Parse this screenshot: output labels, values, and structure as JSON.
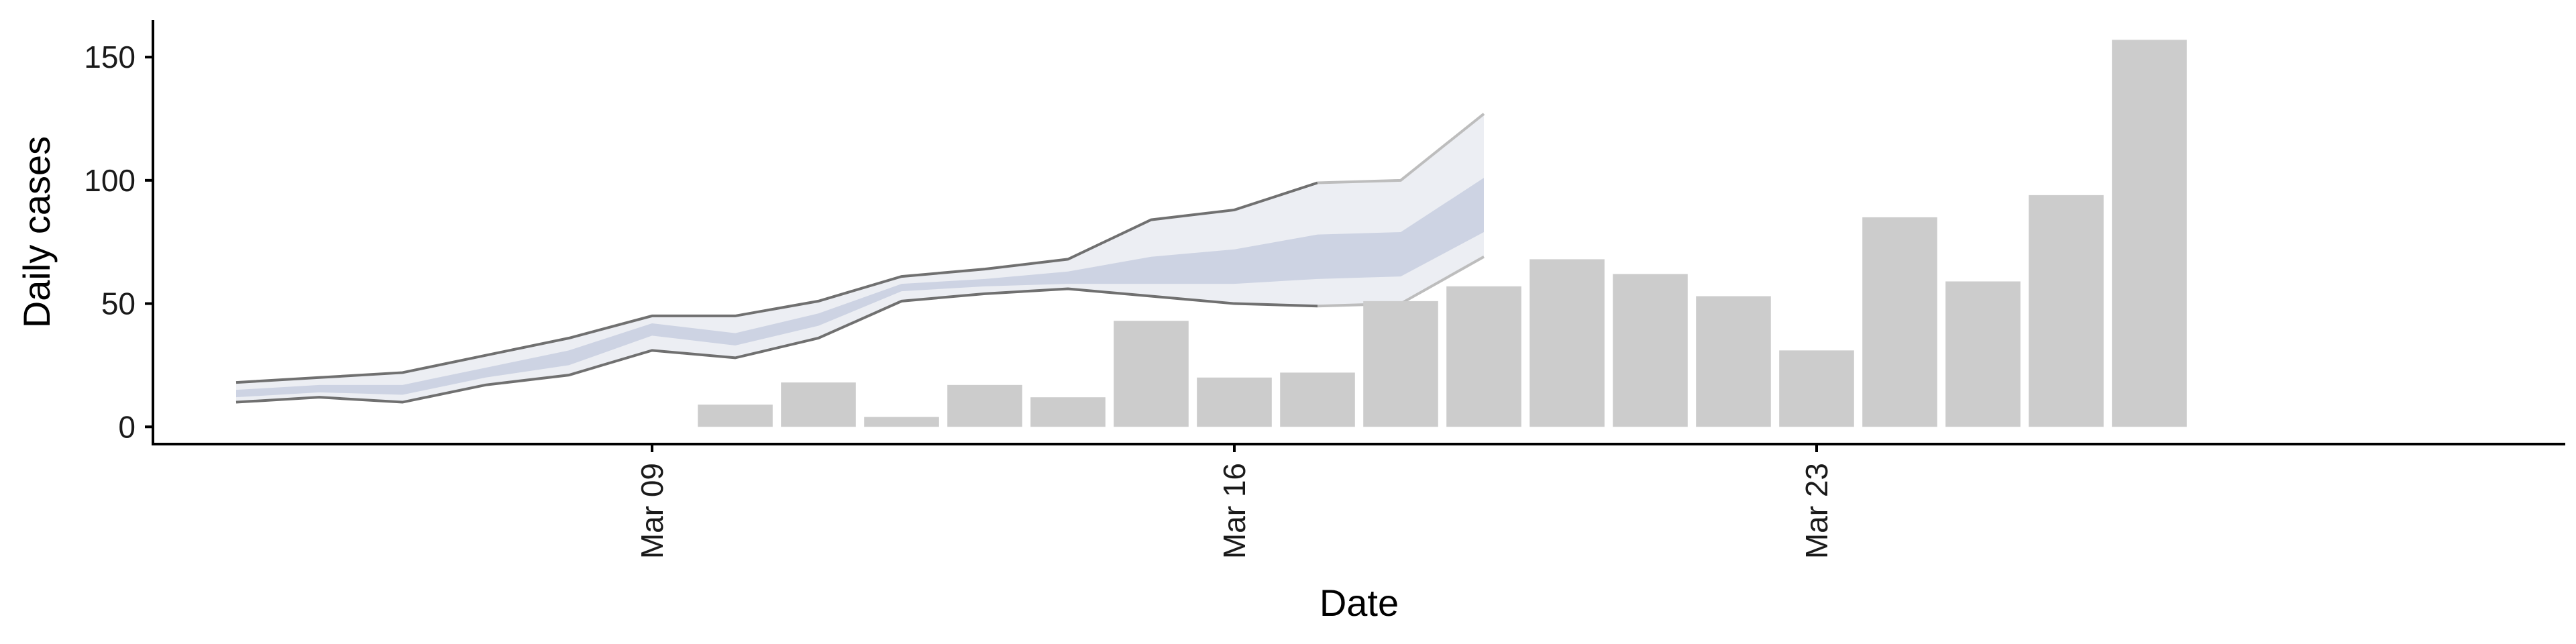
{
  "chart_data": {
    "type": "bar",
    "xlabel": "Date",
    "ylabel": "Daily cases",
    "yticks": [
      0,
      50,
      100,
      150
    ],
    "ylim": [
      -7,
      165
    ],
    "xlim": [
      "2020-03-03",
      "2020-04-01"
    ],
    "xticks": [
      {
        "date": "2020-03-09",
        "label": "Mar 09"
      },
      {
        "date": "2020-03-16",
        "label": "Mar 16"
      },
      {
        "date": "2020-03-23",
        "label": "Mar 23"
      }
    ],
    "bars": {
      "color": "#cccccc",
      "dates": [
        "2020-03-10",
        "2020-03-11",
        "2020-03-12",
        "2020-03-13",
        "2020-03-14",
        "2020-03-15",
        "2020-03-16",
        "2020-03-17",
        "2020-03-18",
        "2020-03-19",
        "2020-03-20",
        "2020-03-21",
        "2020-03-22",
        "2020-03-23",
        "2020-03-24",
        "2020-03-25",
        "2020-03-26",
        "2020-03-27"
      ],
      "values": [
        9,
        18,
        4,
        17,
        12,
        43,
        20,
        22,
        51,
        57,
        68,
        62,
        53,
        31,
        85,
        59,
        94,
        157
      ]
    },
    "band": {
      "dates": [
        "2020-03-04",
        "2020-03-05",
        "2020-03-06",
        "2020-03-07",
        "2020-03-08",
        "2020-03-09",
        "2020-03-10",
        "2020-03-11",
        "2020-03-12",
        "2020-03-13",
        "2020-03-14",
        "2020-03-15",
        "2020-03-16",
        "2020-03-17",
        "2020-03-18",
        "2020-03-19"
      ],
      "outer_upper": [
        18,
        20,
        22,
        29,
        36,
        45,
        45,
        51,
        61,
        64,
        68,
        84,
        88,
        99,
        100,
        127
      ],
      "outer_lower": [
        10,
        12,
        10,
        17,
        21,
        31,
        28,
        36,
        51,
        54,
        56,
        53,
        50,
        49,
        50,
        69
      ],
      "inner_upper": [
        15,
        17,
        17,
        24,
        31,
        42,
        38,
        46,
        58,
        60,
        63,
        69,
        72,
        78,
        79,
        101
      ],
      "inner_lower": [
        12,
        14,
        13,
        20,
        25,
        37,
        33,
        41,
        55,
        57,
        58,
        58,
        58,
        60,
        61,
        79
      ],
      "outer_color": "#eceef3",
      "inner_color": "#cdd3e3",
      "line_color": "#707070",
      "line_light_color": "#bdbdbd"
    }
  }
}
